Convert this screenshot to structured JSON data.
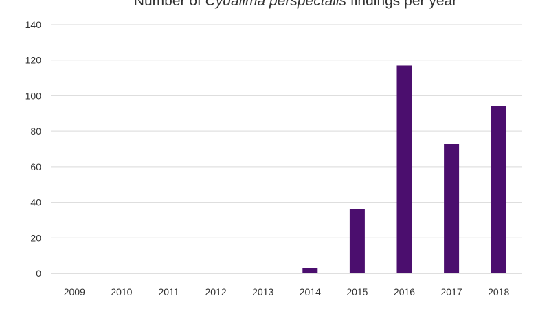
{
  "chart_data": {
    "type": "bar",
    "title_prefix": "Number of ",
    "title_italic": "Cydalima perspectalis",
    "title_suffix": " findings per year",
    "xlabel": "",
    "ylabel": "",
    "categories": [
      "2009",
      "2010",
      "2011",
      "2012",
      "2013",
      "2014",
      "2015",
      "2016",
      "2017",
      "2018"
    ],
    "values": [
      0,
      0,
      0,
      0,
      0,
      3,
      36,
      117,
      73,
      94
    ],
    "ylim": [
      0,
      140
    ],
    "yticks": [
      0,
      20,
      40,
      60,
      80,
      100,
      120,
      140
    ],
    "grid": true,
    "legend": "none",
    "bar_color": "#4b0e6e"
  }
}
